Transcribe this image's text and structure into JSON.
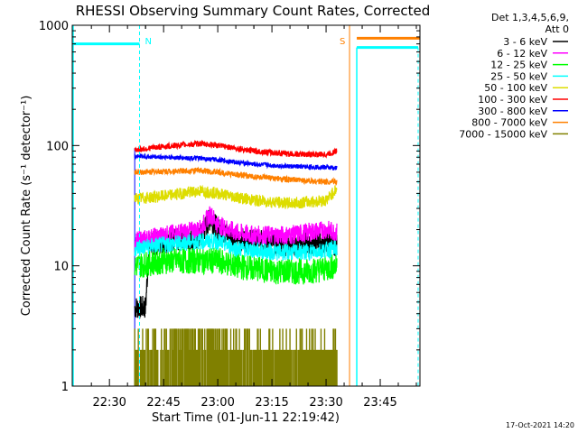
{
  "chart_data": {
    "type": "line",
    "title": "RHESSI Observing Summary Count Rates, Corrected",
    "xlabel": "Start Time (01-Jun-11 22:19:42)",
    "ylabel": "Corrected Count Rate (s⁻¹ detector⁻¹)",
    "yscale": "log",
    "ylim": [
      1,
      1000
    ],
    "xlim": [
      "22:19:42",
      "23:56:00"
    ],
    "y_ticks": [
      "1",
      "10",
      "100",
      "1000"
    ],
    "x_ticks": [
      "22:30",
      "22:45",
      "23:00",
      "23:15",
      "23:30",
      "23:45"
    ],
    "legend_header": [
      "Det 1,3,4,5,6,9,",
      "Att 0"
    ],
    "legend_position": "right",
    "series": [
      {
        "name": "3 - 6 keV",
        "color": "#000000",
        "x": [
          "22:37",
          "22:40",
          "22:41",
          "22:45",
          "22:55",
          "22:58",
          "23:00",
          "23:05",
          "23:10",
          "23:20",
          "23:30",
          "23:33"
        ],
        "values": [
          4.5,
          4.5,
          15,
          16,
          17,
          25,
          20,
          17,
          16,
          15,
          16,
          15
        ]
      },
      {
        "name": "6 - 12 keV",
        "color": "#ff00ff",
        "x": [
          "22:37",
          "22:45",
          "22:55",
          "22:58",
          "23:00",
          "23:05",
          "23:10",
          "23:20",
          "23:30",
          "23:33"
        ],
        "values": [
          16,
          18,
          20,
          27,
          22,
          19,
          18,
          18,
          20,
          19
        ]
      },
      {
        "name": "12 - 25 keV",
        "color": "#00ff00",
        "x": [
          "22:37",
          "22:45",
          "22:55",
          "23:00",
          "23:05",
          "23:15",
          "23:25",
          "23:30",
          "23:33"
        ],
        "values": [
          10,
          11,
          11,
          11,
          10,
          9,
          9,
          9.5,
          10
        ]
      },
      {
        "name": "25 - 50 keV",
        "color": "#00ffff",
        "x": [
          "22:37",
          "22:45",
          "22:55",
          "23:00",
          "23:05",
          "23:15",
          "23:25",
          "23:33"
        ],
        "values": [
          14,
          15,
          16,
          16,
          14,
          13,
          13,
          14
        ]
      },
      {
        "name": "50 - 100 keV",
        "color": "#dddd00",
        "x": [
          "22:37",
          "22:45",
          "22:55",
          "23:00",
          "23:10",
          "23:20",
          "23:30",
          "23:33"
        ],
        "values": [
          36,
          38,
          42,
          40,
          35,
          33,
          35,
          44
        ]
      },
      {
        "name": "100 - 300 keV",
        "color": "#ff0000",
        "x": [
          "22:37",
          "22:45",
          "22:55",
          "23:00",
          "23:10",
          "23:20",
          "23:30",
          "23:33"
        ],
        "values": [
          92,
          98,
          104,
          100,
          90,
          85,
          84,
          90
        ]
      },
      {
        "name": "300 - 800 keV",
        "color": "#0000ff",
        "x": [
          "22:37",
          "22:45",
          "22:55",
          "23:00",
          "23:10",
          "23:20",
          "23:30",
          "23:33"
        ],
        "values": [
          82,
          80,
          78,
          76,
          70,
          67,
          66,
          65
        ]
      },
      {
        "name": "800 - 7000 keV",
        "color": "#ff8000",
        "x": [
          "22:37",
          "22:45",
          "22:55",
          "23:00",
          "23:10",
          "23:20",
          "23:30",
          "23:33"
        ],
        "values": [
          60,
          61,
          62,
          60,
          55,
          52,
          50,
          50
        ]
      },
      {
        "name": "7000 - 15000 keV",
        "color": "#808000",
        "x": [
          "22:37",
          "22:45",
          "22:50",
          "22:55",
          "23:00",
          "23:10",
          "23:20",
          "23:33"
        ],
        "values": [
          1.5,
          1.6,
          2.5,
          2.2,
          1.5,
          1.6,
          1.6,
          1.6
        ]
      }
    ],
    "markers": [
      {
        "label": "N",
        "time": "22:38:20",
        "color": "#00ffff"
      },
      {
        "label": "S",
        "time": "23:36:30",
        "color": "#ff8000"
      }
    ],
    "footer": "17-Oct-2021 14:20"
  }
}
